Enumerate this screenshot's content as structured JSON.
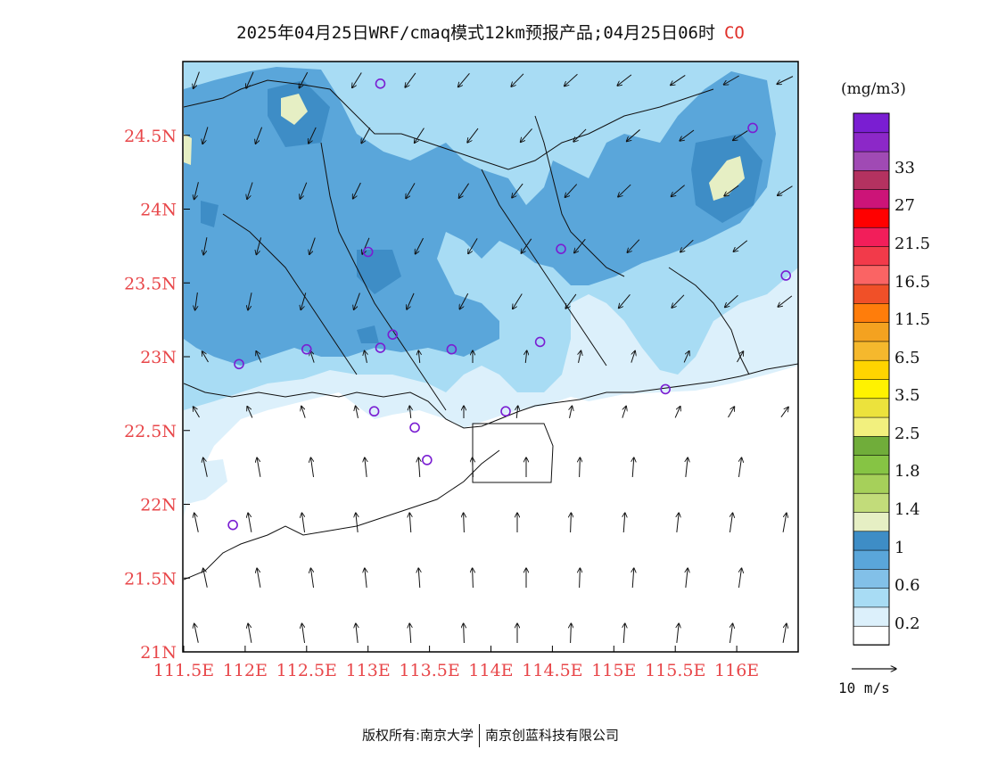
{
  "header": {
    "title": "2025年04月25日WRF/cmaq模式12km预报产品;04月25日06时",
    "species": "CO"
  },
  "footer": {
    "copyright": "版权所有:南京大学",
    "company": "南京创蓝科技有限公司"
  },
  "axes": {
    "lon_ticks": [
      "111.5E",
      "112E",
      "112.5E",
      "113E",
      "113.5E",
      "114E",
      "114.5E",
      "115E",
      "115.5E",
      "116E"
    ],
    "lat_ticks": [
      "21N",
      "21.5N",
      "22N",
      "22.5N",
      "23N",
      "23.5N",
      "24N",
      "24.5N"
    ],
    "tick_color": "#e8474a"
  },
  "legend": {
    "unit": "(mg/m3)",
    "colors": [
      "#ffffff",
      "#dcf0fb",
      "#a8dcf4",
      "#82c0e8",
      "#5aa6da",
      "#3e8dc6",
      "#e6efc4",
      "#c2dc7a",
      "#a6d05a",
      "#86c444",
      "#70ad3a",
      "#f2f07e",
      "#ece23c",
      "#fff200",
      "#ffd400",
      "#f5b82d",
      "#f4a220",
      "#ff7d0b",
      "#f05028",
      "#fa6464",
      "#f23a4a",
      "#f21e5a",
      "#ff0000",
      "#cc1478",
      "#b43260",
      "#a04ab4",
      "#8c28c8",
      "#7a1ed2"
    ],
    "labels": [
      "0.2",
      "0.6",
      "1",
      "1.4",
      "1.8",
      "2.5",
      "3.5",
      "6.5",
      "11.5",
      "16.5",
      "21.5",
      "27",
      "33"
    ],
    "ref_vector_label": "10 m/s"
  },
  "map": {
    "lon_min": 111.5,
    "lon_max": 116.5,
    "lat_min": 21,
    "lat_max": 25,
    "sites": [
      [
        113.1,
        24.85
      ],
      [
        113.0,
        23.71
      ],
      [
        114.57,
        23.73
      ],
      [
        116.13,
        24.55
      ],
      [
        116.4,
        23.55
      ],
      [
        112.5,
        23.05
      ],
      [
        113.1,
        23.06
      ],
      [
        113.2,
        23.15
      ],
      [
        113.68,
        23.05
      ],
      [
        114.4,
        23.1
      ],
      [
        111.95,
        22.95
      ],
      [
        113.05,
        22.63
      ],
      [
        113.38,
        22.52
      ],
      [
        114.12,
        22.63
      ],
      [
        113.48,
        22.3
      ],
      [
        115.42,
        22.78
      ],
      [
        111.9,
        21.86
      ]
    ]
  }
}
